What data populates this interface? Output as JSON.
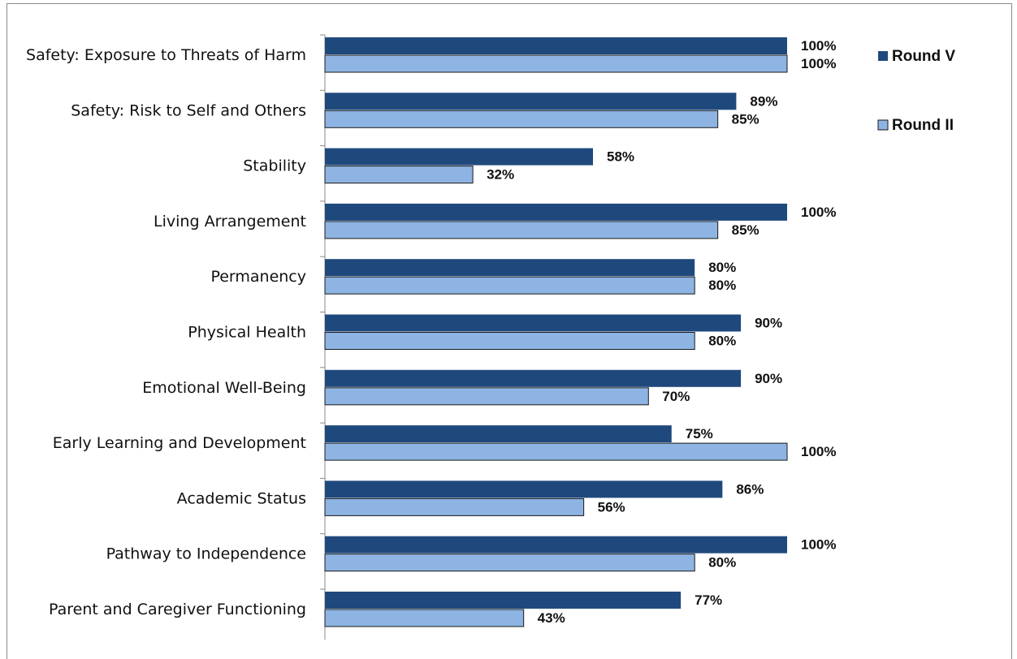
{
  "chart_data": {
    "type": "bar",
    "orientation": "horizontal",
    "title": "",
    "xlabel": "",
    "ylabel": "",
    "xlim": [
      0,
      100
    ],
    "grid": false,
    "legend_position": "top-right",
    "categories": [
      "Safety: Exposure to Threats of Harm",
      "Safety: Risk to Self and Others",
      "Stability",
      "Living Arrangement",
      "Permanency",
      "Physical Health",
      "Emotional Well-Being",
      "Early Learning and Development",
      "Academic Status",
      "Pathway to Independence",
      "Parent and Caregiver Functioning"
    ],
    "series": [
      {
        "name": "Round V",
        "color": "#1F497D",
        "values": [
          100,
          89,
          58,
          100,
          80,
          90,
          90,
          75,
          86,
          100,
          77
        ],
        "labels": [
          "100%",
          "89%",
          "58%",
          "100%",
          "80%",
          "90%",
          "90%",
          "75%",
          "86%",
          "100%",
          "77%"
        ]
      },
      {
        "name": "Round II",
        "color": "#8DB4E2",
        "values": [
          100,
          85,
          32,
          85,
          80,
          80,
          70,
          100,
          56,
          80,
          43
        ],
        "labels": [
          "100%",
          "85%",
          "32%",
          "85%",
          "80%",
          "80%",
          "70%",
          "100%",
          "56%",
          "80%",
          "43%"
        ]
      }
    ]
  }
}
